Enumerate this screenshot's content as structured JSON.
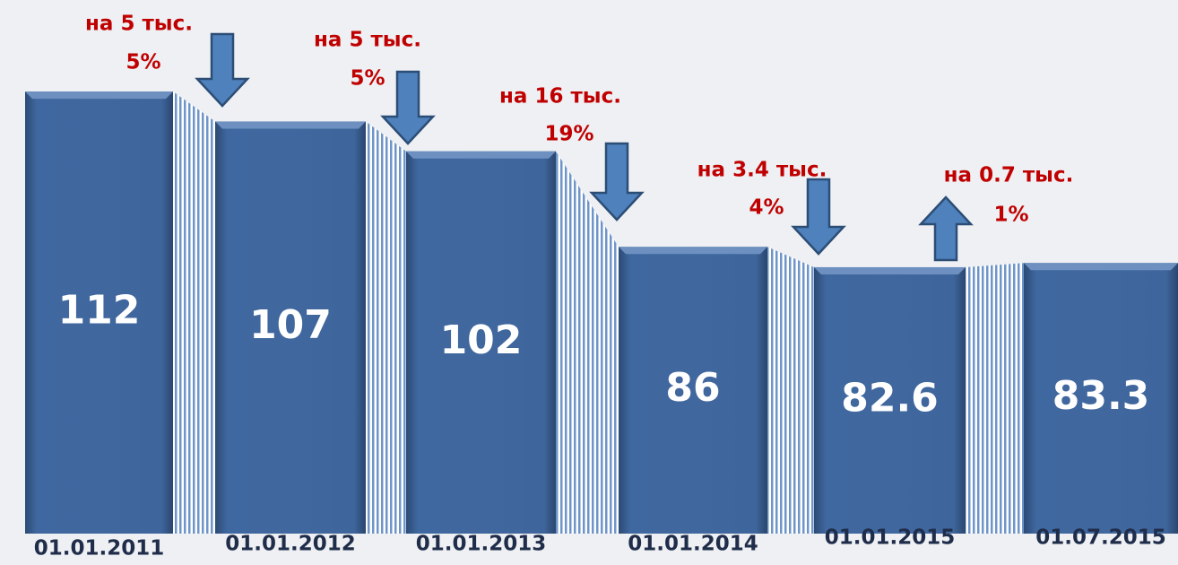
{
  "chart_data": {
    "type": "bar",
    "categories": [
      "01.01.2011",
      "01.01.2012",
      "01.01.2013",
      "01.01.2014",
      "01.01.2015",
      "01.07.2015"
    ],
    "values": [
      112,
      107,
      102,
      86,
      82.6,
      83.3
    ],
    "color": "#3f6496",
    "ylim": [
      38,
      116
    ],
    "annotations": [
      {
        "text": "на 5 тыс.",
        "percent": "5%",
        "direction": "down"
      },
      {
        "text": "на 5 тыс.",
        "percent": "5%",
        "direction": "down"
      },
      {
        "text": "на 16 тыс.",
        "percent": "19%",
        "direction": "down"
      },
      {
        "text": "на 3.4 тыс.",
        "percent": "4%",
        "direction": "down"
      },
      {
        "text": "на 0.7 тыс.",
        "percent": "1%",
        "direction": "up"
      }
    ]
  }
}
